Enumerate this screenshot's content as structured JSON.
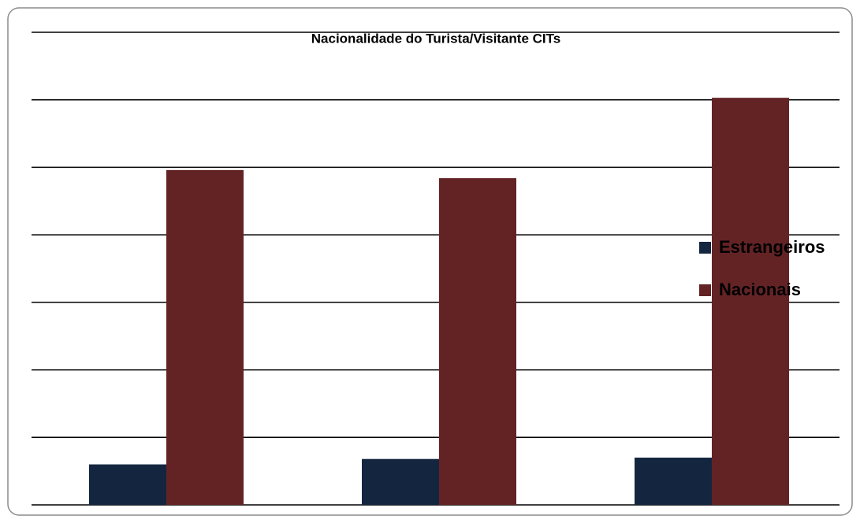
{
  "chart_data": {
    "type": "bar",
    "title": "Nacionalidade do Turista/Visitante CITs",
    "categories": [
      null,
      null,
      null
    ],
    "series": [
      {
        "name": "Estrangeiros",
        "color": "#14263f",
        "values": [
          0.6,
          0.68,
          0.7
        ]
      },
      {
        "name": "Nacionais",
        "color": "#632325",
        "values": [
          4.96,
          4.84,
          6.03
        ]
      }
    ],
    "ylim": [
      0,
      7
    ],
    "yticks": [
      0,
      1,
      2,
      3,
      4,
      5,
      6,
      7
    ],
    "grid": true,
    "legend": "right"
  }
}
